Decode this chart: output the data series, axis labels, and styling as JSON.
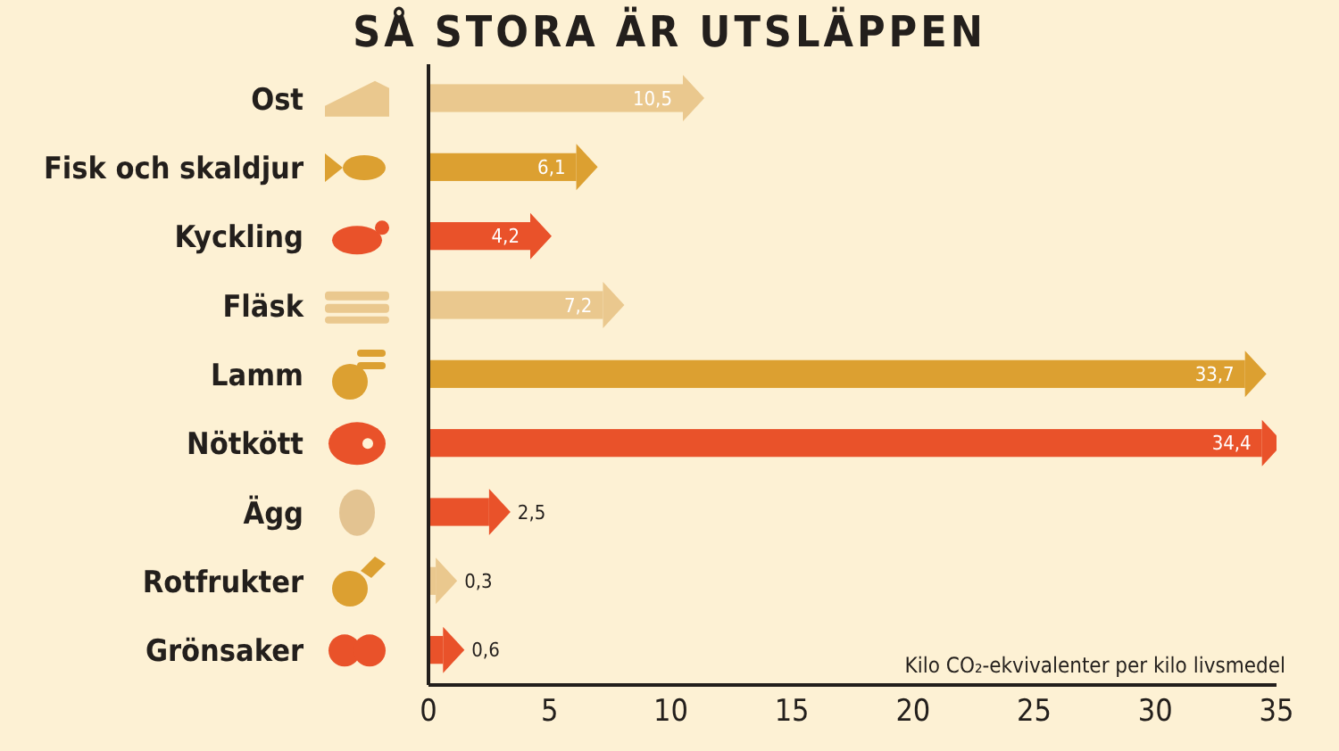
{
  "chart_data": {
    "type": "bar",
    "orientation": "horizontal",
    "title": "SÅ STORA ÄR UTSLÄPPEN",
    "categories": [
      "Ost",
      "Fisk och skaldjur",
      "Kyckling",
      "Fläsk",
      "Lamm",
      "Nötkött",
      "Ägg",
      "Rotfrukter",
      "Grönsaker"
    ],
    "values": [
      10.5,
      6.1,
      4.2,
      7.2,
      33.7,
      34.4,
      2.5,
      0.3,
      0.6
    ],
    "value_labels": [
      "10,5",
      "6,1",
      "4,2",
      "7,2",
      "33,7",
      "34,4",
      "2,5",
      "0,3",
      "0,6"
    ],
    "colors": [
      "#eac88e",
      "#dca031",
      "#e9522a",
      "#eac88e",
      "#dca031",
      "#e9522a",
      "#e9522a",
      "#eac88e",
      "#e9522a"
    ],
    "xlim": [
      0,
      35
    ],
    "xticks": [
      0,
      5,
      10,
      15,
      20,
      25,
      30,
      35
    ],
    "annotations": [
      "Kilo CO₂-ekvivalenter per kilo livsmedel"
    ],
    "grid": false,
    "legend": false
  }
}
